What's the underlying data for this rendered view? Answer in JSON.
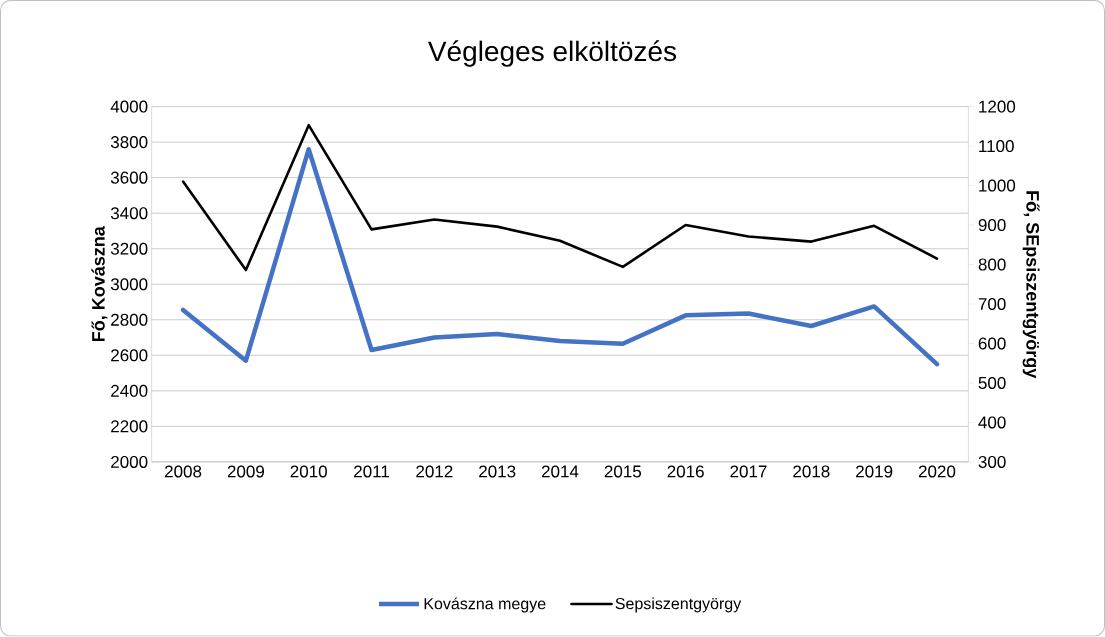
{
  "chart_data": {
    "type": "line",
    "title": "Végleges elköltözés",
    "ylabel": "Fő, Kovászna",
    "y2label": "Fő, SEpsiszentgyörgy",
    "categories": [
      "2008",
      "2009",
      "2010",
      "2011",
      "2012",
      "2013",
      "2014",
      "2015",
      "2016",
      "2017",
      "2018",
      "2019",
      "2020"
    ],
    "series": [
      {
        "name": "Kovászna megye",
        "color": "#4472c4",
        "values": [
          2855,
          2570,
          3760,
          2630,
          2700,
          2720,
          2680,
          2665,
          2825,
          2835,
          2765,
          2875,
          2550
        ]
      },
      {
        "name": "Sepsiszentgyörgy",
        "color": "#000000",
        "axis": "y2",
        "values": [
          1010,
          786,
          1153,
          889,
          914,
          896,
          860,
          794,
          900,
          871,
          858,
          898,
          815
        ]
      }
    ],
    "ylim": [
      2000,
      4000
    ],
    "yticks": [
      2000,
      2200,
      2400,
      2600,
      2800,
      3000,
      3200,
      3400,
      3600,
      3800,
      4000
    ],
    "y2lim": [
      300,
      1200
    ],
    "y2ticks": [
      300,
      400,
      500,
      600,
      700,
      800,
      900,
      1000,
      1100,
      1200
    ],
    "grid": "y",
    "legend": "bottom"
  }
}
